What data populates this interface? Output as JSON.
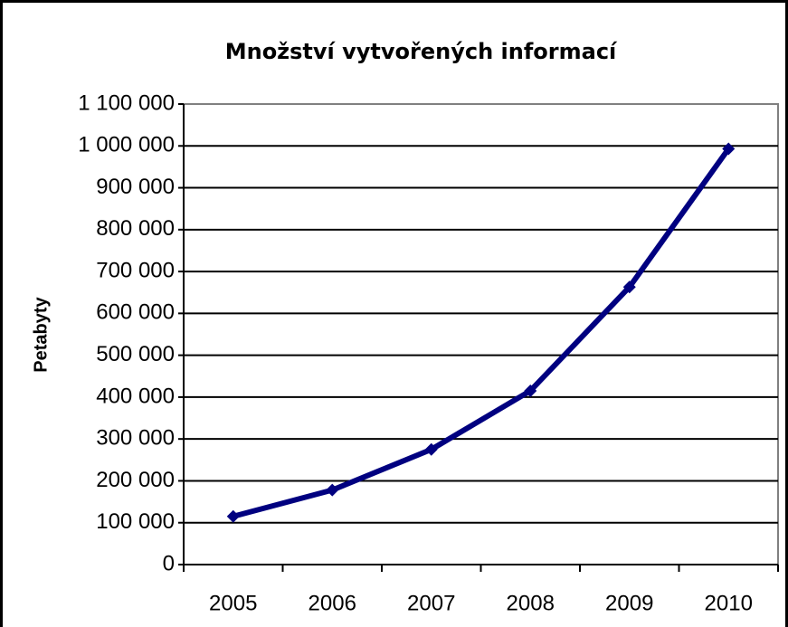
{
  "chart_data": {
    "type": "line",
    "title": "Množství vytvořených informací",
    "y_label": "Petabyty",
    "categories": [
      "2005",
      "2006",
      "2007",
      "2008",
      "2009",
      "2010"
    ],
    "series": [
      {
        "name": "Petabyty",
        "color": "#000080",
        "values": [
          115000,
          178000,
          275000,
          415000,
          663000,
          993000
        ]
      }
    ],
    "ylim": [
      0,
      1100000
    ],
    "yticks": [
      0,
      {
        "value": 100000,
        "label": "100 000"
      },
      {
        "value": 200000,
        "label": "200 000"
      },
      {
        "value": 300000,
        "label": "300 000"
      },
      {
        "value": 400000,
        "label": "400 000"
      },
      {
        "value": 500000,
        "label": "500 000"
      },
      {
        "value": 600000,
        "label": "600 000"
      },
      {
        "value": 700000,
        "label": "700 000"
      },
      {
        "value": 800000,
        "label": "800 000"
      },
      {
        "value": 900000,
        "label": "900 000"
      },
      {
        "value": 1000000,
        "label": "1 000 000"
      },
      {
        "value": 1100000,
        "label": "1 100 000"
      }
    ],
    "grid": true
  }
}
